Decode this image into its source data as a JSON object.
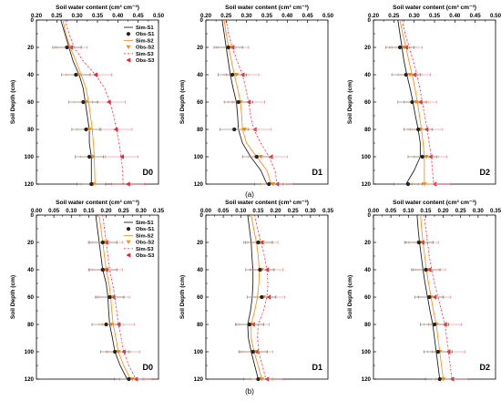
{
  "rows": [
    {
      "label": "(a)",
      "x_title": "Soil water content (cm³ cm⁻³)",
      "xlim": [
        0.2,
        0.5
      ],
      "xticks": [
        "0.20",
        "0.25",
        "0.30",
        "0.35",
        "0.40",
        "0.45",
        "0.50"
      ]
    },
    {
      "label": "(b)",
      "x_title": "Soil water content (cm³ cm⁻³)",
      "xlim": [
        0.0,
        0.35
      ],
      "xticks": [
        "0.00",
        "0.05",
        "0.10",
        "0.15",
        "0.20",
        "0.25",
        "0.30",
        "0.35"
      ]
    }
  ],
  "y_title": "Soil Depth (cm)",
  "yticks": [
    "0",
    "20",
    "40",
    "60",
    "80",
    "100",
    "120"
  ],
  "legend": [
    "Sim-S1",
    "Obs-S1",
    "Sim-S2",
    "Obs-S2",
    "Sim-S3",
    "Obs-S3"
  ],
  "colors": {
    "s1": "#222222",
    "s2": "#f79420",
    "s3": "#e8243a"
  },
  "chart_data": [
    {
      "type": "line",
      "panel": "D0",
      "row": "a",
      "xlim": [
        0.2,
        0.5
      ],
      "ylim": [
        0,
        120
      ],
      "y_inverted": true,
      "sim": {
        "depths": [
          0,
          10,
          20,
          30,
          40,
          50,
          60,
          70,
          80,
          90,
          100,
          110,
          120
        ],
        "s1": [
          0.26,
          0.27,
          0.28,
          0.29,
          0.305,
          0.315,
          0.32,
          0.325,
          0.33,
          0.33,
          0.335,
          0.335,
          0.335
        ],
        "s2": [
          0.265,
          0.272,
          0.283,
          0.297,
          0.31,
          0.322,
          0.328,
          0.333,
          0.337,
          0.34,
          0.342,
          0.343,
          0.344
        ],
        "s3": [
          0.27,
          0.28,
          0.293,
          0.315,
          0.345,
          0.368,
          0.38,
          0.39,
          0.397,
          0.403,
          0.408,
          0.412,
          0.413
        ]
      },
      "obs": {
        "depths": [
          20,
          40,
          60,
          80,
          100,
          120
        ],
        "s1": [
          0.275,
          0.297,
          0.315,
          0.322,
          0.33,
          0.335
        ],
        "s2": [
          0.28,
          0.302,
          0.322,
          0.33,
          0.338,
          0.34
        ],
        "s3": [
          0.285,
          0.345,
          0.378,
          0.395,
          0.41,
          0.425
        ]
      }
    },
    {
      "type": "line",
      "panel": "D1",
      "row": "a",
      "xlim": [
        0.2,
        0.5
      ],
      "ylim": [
        0,
        120
      ],
      "y_inverted": true,
      "sim": {
        "depths": [
          0,
          10,
          20,
          30,
          40,
          50,
          60,
          70,
          80,
          90,
          100,
          110,
          120
        ],
        "s1": [
          0.24,
          0.245,
          0.25,
          0.255,
          0.26,
          0.267,
          0.275,
          0.278,
          0.28,
          0.29,
          0.31,
          0.335,
          0.35
        ],
        "s2": [
          0.245,
          0.25,
          0.256,
          0.263,
          0.27,
          0.278,
          0.285,
          0.288,
          0.29,
          0.3,
          0.325,
          0.35,
          0.36
        ],
        "s3": [
          0.25,
          0.256,
          0.265,
          0.277,
          0.29,
          0.298,
          0.305,
          0.31,
          0.318,
          0.335,
          0.355,
          0.37,
          0.375
        ]
      },
      "obs": {
        "depths": [
          20,
          40,
          60,
          80,
          100,
          120
        ],
        "s1": [
          0.255,
          0.265,
          0.28,
          0.27,
          0.325,
          0.355
        ],
        "s2": [
          0.26,
          0.275,
          0.285,
          0.295,
          0.335,
          0.365
        ],
        "s3": [
          0.265,
          0.29,
          0.305,
          0.32,
          0.36,
          0.375
        ]
      }
    },
    {
      "type": "line",
      "panel": "D2",
      "row": "a",
      "xlim": [
        0.2,
        0.5
      ],
      "ylim": [
        0,
        120
      ],
      "y_inverted": true,
      "sim": {
        "depths": [
          0,
          10,
          20,
          30,
          40,
          50,
          60,
          70,
          80,
          90,
          100,
          110,
          120
        ],
        "s1": [
          0.26,
          0.265,
          0.27,
          0.275,
          0.282,
          0.29,
          0.297,
          0.303,
          0.31,
          0.315,
          0.315,
          0.3,
          0.28
        ],
        "s2": [
          0.265,
          0.272,
          0.28,
          0.287,
          0.295,
          0.302,
          0.308,
          0.313,
          0.318,
          0.322,
          0.325,
          0.325,
          0.325
        ],
        "s3": [
          0.27,
          0.278,
          0.288,
          0.298,
          0.307,
          0.314,
          0.32,
          0.326,
          0.332,
          0.337,
          0.342,
          0.345,
          0.348
        ]
      },
      "obs": {
        "depths": [
          20,
          40,
          60,
          80,
          100,
          120
        ],
        "s1": [
          0.265,
          0.28,
          0.295,
          0.31,
          0.32,
          0.285
        ],
        "s2": [
          0.275,
          0.29,
          0.305,
          0.315,
          0.33,
          0.325
        ],
        "s3": [
          0.28,
          0.3,
          0.315,
          0.33,
          0.34,
          0.35
        ]
      }
    },
    {
      "type": "line",
      "panel": "D0",
      "row": "b",
      "xlim": [
        0.0,
        0.35
      ],
      "ylim": [
        0,
        120
      ],
      "y_inverted": true,
      "sim": {
        "depths": [
          0,
          10,
          20,
          30,
          40,
          50,
          60,
          70,
          80,
          90,
          100,
          110,
          120
        ],
        "s1": [
          0.17,
          0.175,
          0.18,
          0.185,
          0.19,
          0.2,
          0.205,
          0.207,
          0.21,
          0.218,
          0.225,
          0.24,
          0.26
        ],
        "s2": [
          0.18,
          0.185,
          0.19,
          0.195,
          0.2,
          0.208,
          0.213,
          0.216,
          0.22,
          0.228,
          0.235,
          0.25,
          0.27
        ],
        "s3": [
          0.19,
          0.195,
          0.2,
          0.205,
          0.21,
          0.218,
          0.225,
          0.23,
          0.235,
          0.243,
          0.25,
          0.265,
          0.285
        ]
      },
      "obs": {
        "depths": [
          20,
          40,
          60,
          80,
          100,
          120
        ],
        "s1": [
          0.19,
          0.19,
          0.21,
          0.2,
          0.225,
          0.265
        ],
        "s2": [
          0.195,
          0.195,
          0.215,
          0.215,
          0.235,
          0.275
        ],
        "s3": [
          0.2,
          0.2,
          0.22,
          0.235,
          0.25,
          0.285
        ]
      }
    },
    {
      "type": "line",
      "panel": "D1",
      "row": "b",
      "xlim": [
        0.0,
        0.35
      ],
      "ylim": [
        0,
        120
      ],
      "y_inverted": true,
      "sim": {
        "depths": [
          0,
          10,
          20,
          30,
          40,
          50,
          60,
          70,
          80,
          90,
          100,
          110,
          120
        ],
        "s1": [
          0.12,
          0.125,
          0.13,
          0.132,
          0.135,
          0.135,
          0.133,
          0.128,
          0.12,
          0.122,
          0.13,
          0.14,
          0.15
        ],
        "s2": [
          0.13,
          0.137,
          0.145,
          0.15,
          0.153,
          0.152,
          0.148,
          0.14,
          0.13,
          0.13,
          0.138,
          0.15,
          0.16
        ],
        "s3": [
          0.14,
          0.148,
          0.158,
          0.168,
          0.175,
          0.178,
          0.175,
          0.165,
          0.15,
          0.148,
          0.152,
          0.162,
          0.172
        ]
      },
      "obs": {
        "depths": [
          20,
          40,
          60,
          80,
          100,
          120
        ],
        "s1": [
          0.15,
          0.155,
          0.16,
          0.125,
          0.135,
          0.15
        ],
        "s2": [
          0.155,
          0.16,
          0.165,
          0.13,
          0.14,
          0.16
        ],
        "s3": [
          0.16,
          0.175,
          0.18,
          0.135,
          0.145,
          0.175
        ]
      }
    },
    {
      "type": "line",
      "panel": "D2",
      "row": "b",
      "xlim": [
        0.0,
        0.35
      ],
      "ylim": [
        0,
        120
      ],
      "y_inverted": true,
      "sim": {
        "depths": [
          0,
          10,
          20,
          30,
          40,
          50,
          60,
          70,
          80,
          90,
          100,
          110,
          120
        ],
        "s1": [
          0.125,
          0.128,
          0.132,
          0.137,
          0.142,
          0.148,
          0.155,
          0.162,
          0.17,
          0.175,
          0.18,
          0.185,
          0.19
        ],
        "s2": [
          0.135,
          0.138,
          0.142,
          0.147,
          0.152,
          0.158,
          0.165,
          0.172,
          0.18,
          0.185,
          0.19,
          0.195,
          0.2
        ],
        "s3": [
          0.145,
          0.15,
          0.155,
          0.16,
          0.167,
          0.175,
          0.185,
          0.195,
          0.205,
          0.21,
          0.215,
          0.22,
          0.225
        ]
      },
      "obs": {
        "depths": [
          20,
          40,
          60,
          80,
          100,
          120
        ],
        "s1": [
          0.13,
          0.15,
          0.16,
          0.175,
          0.185,
          0.19
        ],
        "s2": [
          0.135,
          0.155,
          0.165,
          0.18,
          0.19,
          0.2
        ],
        "s3": [
          0.14,
          0.16,
          0.175,
          0.205,
          0.215,
          0.225
        ]
      }
    }
  ]
}
